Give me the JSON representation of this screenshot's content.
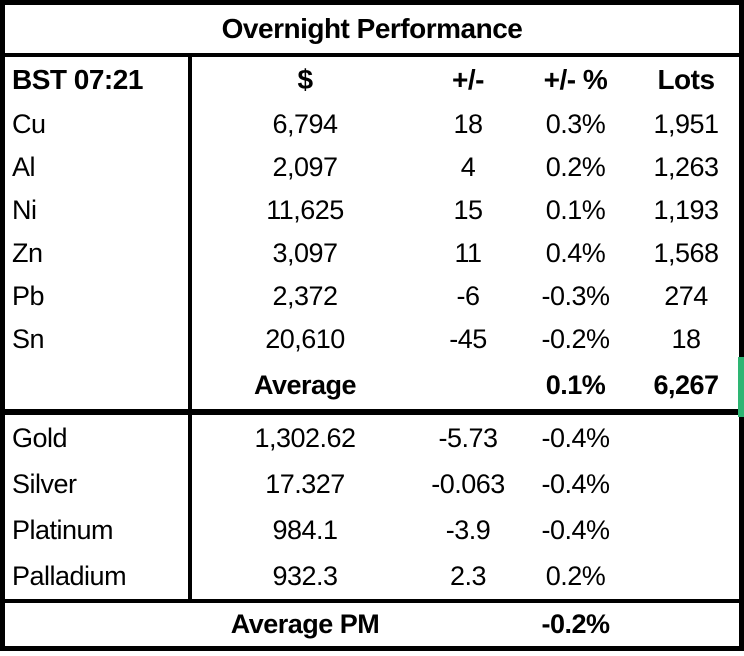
{
  "chart_data": {
    "type": "table",
    "title": "Overnight Performance",
    "header": {
      "time": "BST 07:21",
      "price": "$",
      "change": "+/-",
      "change_pct": "+/- %",
      "lots": "Lots"
    },
    "base_metals": [
      {
        "name": "Cu",
        "price": "6,794",
        "change": "18",
        "change_pct": "0.3%",
        "lots": "1,951"
      },
      {
        "name": "Al",
        "price": "2,097",
        "change": "4",
        "change_pct": "0.2%",
        "lots": "1,263"
      },
      {
        "name": "Ni",
        "price": "11,625",
        "change": "15",
        "change_pct": "0.1%",
        "lots": "1,193"
      },
      {
        "name": "Zn",
        "price": "3,097",
        "change": "11",
        "change_pct": "0.4%",
        "lots": "1,568"
      },
      {
        "name": "Pb",
        "price": "2,372",
        "change": "-6",
        "change_pct": "-0.3%",
        "lots": "274"
      },
      {
        "name": "Sn",
        "price": "20,610",
        "change": "-45",
        "change_pct": "-0.2%",
        "lots": "18"
      }
    ],
    "base_average": {
      "label": "Average",
      "change_pct": "0.1%",
      "lots": "6,267"
    },
    "precious_metals": [
      {
        "name": "Gold",
        "price": "1,302.62",
        "change": "-5.73",
        "change_pct": "-0.4%"
      },
      {
        "name": "Silver",
        "price": "17.327",
        "change": "-0.063",
        "change_pct": "-0.4%"
      },
      {
        "name": "Platinum",
        "price": "984.1",
        "change": "-3.9",
        "change_pct": "-0.4%"
      },
      {
        "name": "Palladium",
        "price": "932.3",
        "change": "2.3",
        "change_pct": "0.2%"
      }
    ],
    "pm_average": {
      "label": "Average PM",
      "change_pct": "-0.2%"
    }
  },
  "accent": {
    "green_marker": "#2eb573"
  }
}
